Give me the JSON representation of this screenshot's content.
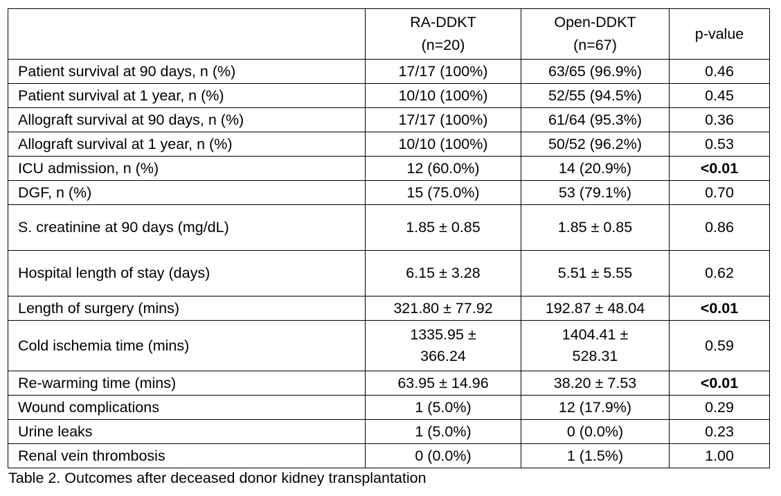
{
  "table": {
    "headers": {
      "label": "",
      "ra": "RA-DDKT (n=20)",
      "ra_line1": "RA-DDKT",
      "ra_line2": "(n=20)",
      "open_line1": "Open-DDKT",
      "open_line2": "(n=67)",
      "p": "p-value"
    },
    "rows": [
      {
        "label": "Patient survival at 90 days, n (%)",
        "ra": "17/17 (100%)",
        "open": "63/65 (96.9%)",
        "p": "0.46"
      },
      {
        "label": "Patient survival at 1 year, n (%)",
        "ra": "10/10 (100%)",
        "open": "52/55 (94.5%)",
        "p": "0.45"
      },
      {
        "label": "Allograft survival at 90 days, n (%)",
        "ra": "17/17 (100%)",
        "open": "61/64 (95.3%)",
        "p": "0.36"
      },
      {
        "label": "Allograft survival at 1 year, n (%)",
        "ra": "10/10 (100%)",
        "open": "50/52 (96.2%)",
        "p": "0.53"
      },
      {
        "label": "ICU admission, n (%)",
        "ra": "12 (60.0%)",
        "open": "14 (20.9%)",
        "p": "<0.01"
      },
      {
        "label": "DGF, n (%)",
        "ra": "15 (75.0%)",
        "open": "53 (79.1%)",
        "p": "0.70"
      },
      {
        "label": "S. creatinine at 90 days (mg/dL)",
        "ra": "1.85 ± 0.85",
        "open": "1.85 ± 0.85",
        "p": "0.86"
      },
      {
        "label": "Hospital length of stay (days)",
        "ra": "6.15 ± 3.28",
        "open": "5.51 ± 5.55",
        "p": "0.62"
      },
      {
        "label": "Length of surgery (mins)",
        "ra": "321.80 ± 77.92",
        "open": "192.87 ± 48.04",
        "p": "<0.01"
      },
      {
        "label": "Cold ischemia time (mins)",
        "ra_line1": "1335.95 ±",
        "ra_line2": "366.24",
        "open_line1": "1404.41 ±",
        "open_line2": "528.31",
        "p": "0.59"
      },
      {
        "label": "Re-warming time (mins)",
        "ra": "63.95 ± 14.96",
        "open": "38.20 ± 7.53",
        "p": "<0.01"
      },
      {
        "label": "Wound complications",
        "ra": "1 (5.0%)",
        "open": "12 (17.9%)",
        "p": "0.29"
      },
      {
        "label": "Urine leaks",
        "ra": "1 (5.0%)",
        "open": "0 (0.0%)",
        "p": "0.23"
      },
      {
        "label": "Renal vein thrombosis",
        "ra": "0 (0.0%)",
        "open": "1 (1.5%)",
        "p": "1.00"
      }
    ]
  },
  "caption": "Table 2. Outcomes after deceased donor kidney transplantation"
}
